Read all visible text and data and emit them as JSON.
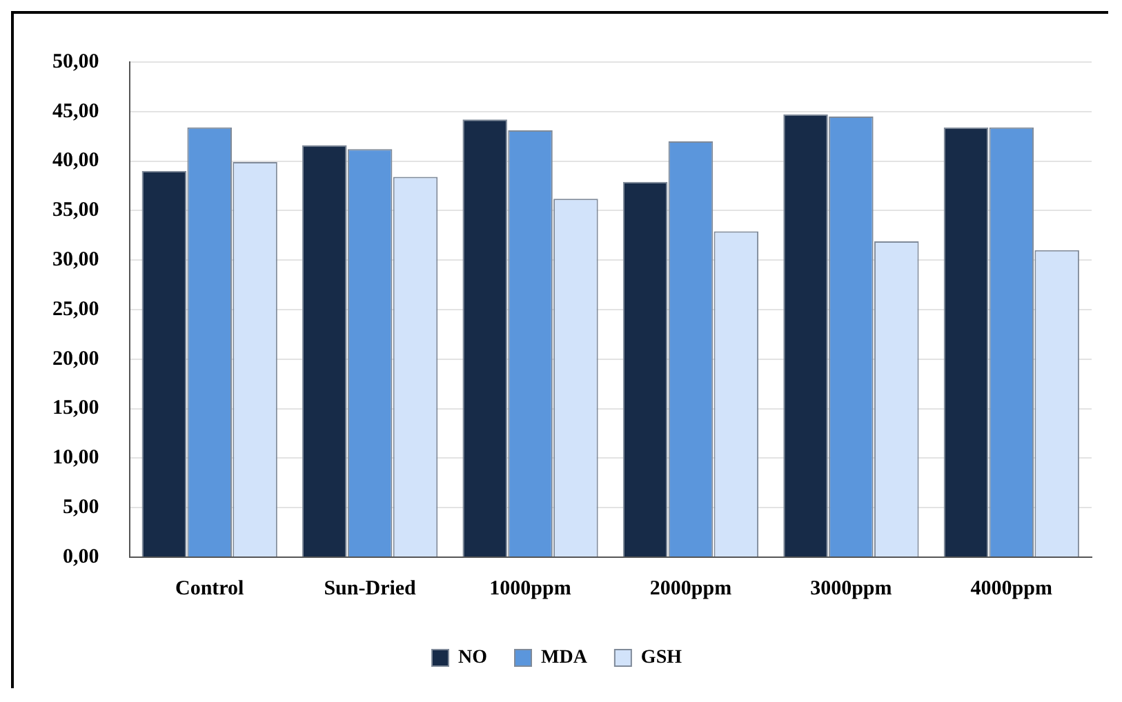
{
  "chart_data": {
    "type": "bar",
    "categories": [
      "Control",
      "Sun-Dried",
      "1000ppm",
      "2000ppm",
      "3000ppm",
      "4000ppm"
    ],
    "series": [
      {
        "name": "NO",
        "color": "#172b48",
        "values": [
          39.0,
          41.6,
          44.2,
          37.9,
          44.7,
          43.4
        ]
      },
      {
        "name": "MDA",
        "color": "#5b96dc",
        "values": [
          43.4,
          41.2,
          43.1,
          42.0,
          44.5,
          43.4
        ]
      },
      {
        "name": "GSH",
        "color": "#d2e3fa",
        "values": [
          39.9,
          38.4,
          36.2,
          32.9,
          31.9,
          31.0
        ]
      }
    ],
    "ylim": [
      0,
      50
    ],
    "yticks": [
      {
        "value": 0,
        "label": "0,00"
      },
      {
        "value": 5,
        "label": "5,00"
      },
      {
        "value": 10,
        "label": "10,00"
      },
      {
        "value": 15,
        "label": "15,00"
      },
      {
        "value": 20,
        "label": "20,00"
      },
      {
        "value": 25,
        "label": "25,00"
      },
      {
        "value": 30,
        "label": "30,00"
      },
      {
        "value": 35,
        "label": "35,00"
      },
      {
        "value": 40,
        "label": "40,00"
      },
      {
        "value": 45,
        "label": "45,00"
      },
      {
        "value": 50,
        "label": "50,00"
      }
    ],
    "grid": "y",
    "legend": "bottom"
  }
}
